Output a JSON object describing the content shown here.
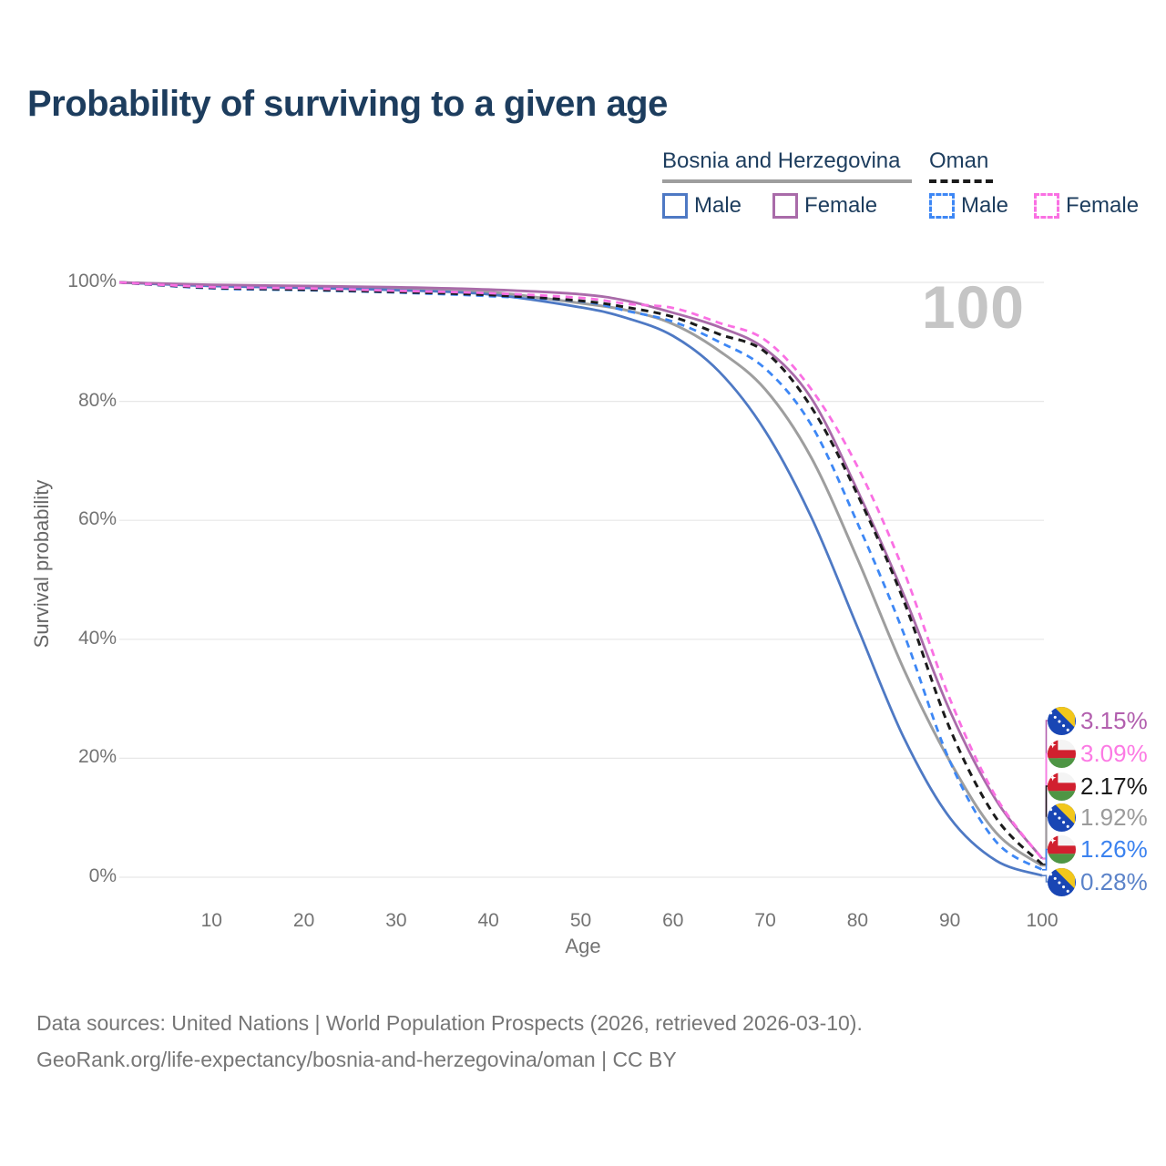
{
  "header": {
    "title": "Probability of surviving to a given age"
  },
  "legend": {
    "groups": [
      {
        "label": "Bosnia and Herzegovina",
        "line_style": "solid",
        "line_color": "#9e9e9e",
        "items": [
          {
            "label": "Male",
            "color": "#4e79c4",
            "dash": false
          },
          {
            "label": "Female",
            "color": "#a96ba9",
            "dash": false
          }
        ]
      },
      {
        "label": "Oman",
        "line_style": "dashed",
        "line_color": "#1b1b1b",
        "items": [
          {
            "label": "Male",
            "color": "#3d87f5",
            "dash": true
          },
          {
            "label": "Female",
            "color": "#fa70e3",
            "dash": true
          }
        ]
      }
    ]
  },
  "chart_data": {
    "type": "line",
    "title": "Probability of surviving to a given age",
    "xlabel": "Age",
    "ylabel": "Survival probability",
    "xlim": [
      0,
      100
    ],
    "ylim": [
      0,
      100
    ],
    "grid": "horizontal",
    "age_marker": "100",
    "x_ticks": [
      10,
      20,
      30,
      40,
      50,
      60,
      70,
      80,
      90,
      100
    ],
    "y_ticks": {
      "values": [
        0,
        20,
        40,
        60,
        80,
        100
      ],
      "labels": [
        "0%",
        "20%",
        "40%",
        "60%",
        "80%",
        "100%"
      ]
    },
    "x": [
      0,
      10,
      20,
      30,
      40,
      50,
      55,
      60,
      65,
      70,
      75,
      80,
      85,
      90,
      95,
      100
    ],
    "series": [
      {
        "name": "Bosnia and Herzegovina",
        "sex": "both",
        "color": "#9e9e9e",
        "dash": false,
        "values": [
          100,
          99.5,
          99.3,
          98.9,
          98.4,
          96.5,
          95.3,
          93.0,
          88.5,
          82.0,
          70.5,
          53.5,
          35.0,
          19.5,
          7.5,
          1.92
        ]
      },
      {
        "name": "Bosnia and Herzegovina — Male",
        "sex": "male",
        "color": "#4e79c4",
        "dash": false,
        "values": [
          100,
          99.4,
          99.1,
          98.7,
          98.0,
          95.8,
          94.0,
          91.0,
          85.0,
          75.0,
          60.5,
          42.0,
          23.5,
          10.0,
          2.8,
          0.28
        ]
      },
      {
        "name": "Bosnia and Herzegovina — Female",
        "sex": "female",
        "color": "#a96ba9",
        "dash": false,
        "values": [
          100,
          99.6,
          99.4,
          99.2,
          98.8,
          98.0,
          96.9,
          94.9,
          92.5,
          88.8,
          80.5,
          65.0,
          47.5,
          28.0,
          13.0,
          3.15
        ]
      },
      {
        "name": "Oman — Male",
        "sex": "male",
        "color": "#3d87f5",
        "dash": true,
        "values": [
          100,
          99.0,
          98.7,
          98.3,
          97.7,
          96.8,
          95.2,
          93.4,
          90.0,
          85.5,
          76.0,
          59.5,
          41.0,
          19.5,
          6.0,
          1.26
        ]
      },
      {
        "name": "Oman",
        "sex": "both",
        "color": "#1b1b1b",
        "dash": true,
        "values": [
          100,
          99.1,
          98.8,
          98.4,
          97.9,
          96.9,
          95.8,
          94.2,
          91.3,
          88.3,
          79.0,
          64.3,
          46.5,
          25.0,
          10.0,
          2.17
        ]
      },
      {
        "name": "Oman — Female",
        "sex": "female",
        "color": "#fa70e3",
        "dash": true,
        "values": [
          100,
          99.2,
          99.0,
          98.6,
          98.2,
          97.4,
          96.4,
          95.7,
          93.2,
          90.3,
          82.0,
          69.0,
          51.5,
          30.0,
          13.5,
          3.09
        ]
      }
    ]
  },
  "end_labels": [
    {
      "value": "3.15%",
      "series_index": 2,
      "series": "Bosnia and Herzegovina — Female",
      "flag": "bosnia-and-herzegovina",
      "color": "#b25fae"
    },
    {
      "value": "3.09%",
      "series_index": 5,
      "series": "Oman — Female",
      "flag": "oman",
      "color": "#fc7ae4"
    },
    {
      "value": "2.17%",
      "series_index": 4,
      "series": "Oman",
      "flag": "oman",
      "color": "#1c1c1c"
    },
    {
      "value": "1.92%",
      "series_index": 0,
      "series": "Bosnia and Herzegovina",
      "flag": "bosnia-and-herzegovina",
      "color": "#9b9b9b"
    },
    {
      "value": "1.26%",
      "series_index": 3,
      "series": "Oman — Male",
      "flag": "oman",
      "color": "#3b82ef"
    },
    {
      "value": "0.28%",
      "series_index": 1,
      "series": "Bosnia and Herzegovina — Male",
      "flag": "bosnia-and-herzegovina",
      "color": "#5b83c9"
    }
  ],
  "footer": {
    "line1": "Data sources: United Nations | World Population Prospects (2026, retrieved 2026-03-10).",
    "line2": "GeoRank.org/life-expectancy/bosnia-and-herzegovina/oman | CC BY"
  }
}
